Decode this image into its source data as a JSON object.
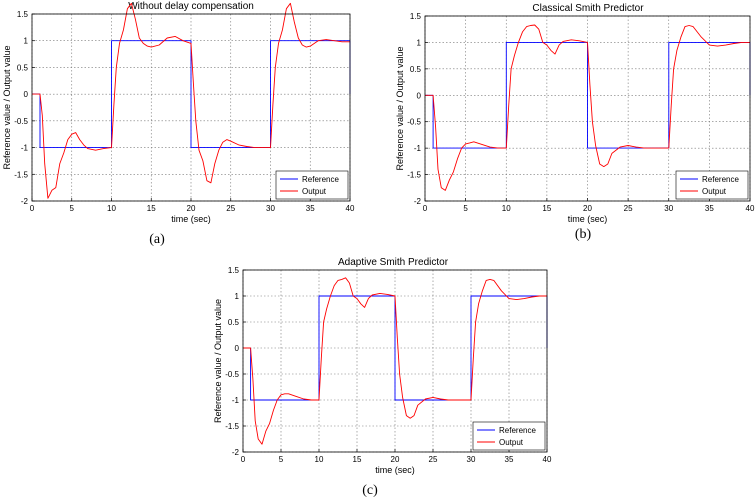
{
  "chart_data": [
    {
      "type": "line",
      "title": "Without delay compensation",
      "caption": "(a)",
      "xlabel": "time (sec)",
      "ylabel": "Reference value / Output value",
      "xlim": [
        0,
        40
      ],
      "ylim": [
        -2,
        1.5
      ],
      "xticks": [
        "0",
        "5",
        "10",
        "15",
        "20",
        "25",
        "30",
        "35",
        "40"
      ],
      "yticks": [
        "-2",
        "-1.5",
        "-1",
        "-0.5",
        "0",
        "0.5",
        "1",
        "1.5"
      ],
      "grid": true,
      "legend_position": "bottom-right",
      "series": [
        {
          "name": "Reference",
          "color": "#0000ff",
          "x": [
            0,
            1,
            1,
            10,
            10,
            20,
            20,
            30,
            30,
            40,
            40
          ],
          "y": [
            0,
            0,
            -1,
            -1,
            1,
            1,
            -1,
            -1,
            1,
            1,
            0
          ]
        },
        {
          "name": "Output",
          "color": "#ff0000",
          "x": [
            0,
            1,
            1.3,
            1.6,
            2,
            2.5,
            3,
            3.5,
            4,
            4.5,
            5,
            5.5,
            6,
            6.5,
            7,
            8,
            9,
            10,
            10.3,
            10.6,
            11,
            11.5,
            12,
            12.5,
            13,
            13.5,
            14,
            14.5,
            15,
            16,
            17,
            18,
            19,
            20,
            20.3,
            20.6,
            21,
            21.5,
            22,
            22.5,
            23,
            23.5,
            24,
            24.5,
            25,
            26,
            27,
            28,
            29,
            30,
            30.3,
            30.6,
            31,
            31.5,
            32,
            32.5,
            33,
            33.5,
            34,
            34.5,
            35,
            36,
            37,
            38,
            39,
            40
          ],
          "y": [
            0,
            0,
            -0.4,
            -1.3,
            -1.95,
            -1.8,
            -1.75,
            -1.3,
            -1.1,
            -0.85,
            -0.75,
            -0.72,
            -0.85,
            -0.95,
            -1.02,
            -1.05,
            -1.02,
            -1.0,
            -0.2,
            0.5,
            0.95,
            1.2,
            1.6,
            1.7,
            1.4,
            1.05,
            0.95,
            0.9,
            0.88,
            0.92,
            1.05,
            1.08,
            1.0,
            0.95,
            0.2,
            -0.5,
            -1.05,
            -1.25,
            -1.62,
            -1.66,
            -1.3,
            -1.05,
            -0.9,
            -0.85,
            -0.88,
            -0.95,
            -0.98,
            -1.0,
            -1.0,
            -1.0,
            -0.2,
            0.5,
            0.95,
            1.2,
            1.6,
            1.7,
            1.35,
            1.05,
            0.92,
            0.88,
            0.9,
            1.0,
            1.02,
            1.0,
            0.98,
            0.98
          ]
        }
      ]
    },
    {
      "type": "line",
      "title": "Classical Smith Predictor",
      "caption": "(b)",
      "xlabel": "time (sec)",
      "ylabel": "Reference value / Output value",
      "xlim": [
        0,
        40
      ],
      "ylim": [
        -2,
        1.5
      ],
      "xticks": [
        "0",
        "5",
        "10",
        "15",
        "20",
        "25",
        "30",
        "35",
        "40"
      ],
      "yticks": [
        "-2",
        "-1.5",
        "-1",
        "-0.5",
        "0",
        "0.5",
        "1",
        "1.5"
      ],
      "grid": true,
      "legend_position": "bottom-right",
      "series": [
        {
          "name": "Reference",
          "color": "#0000ff",
          "x": [
            0,
            1,
            1,
            10,
            10,
            20,
            20,
            30,
            30,
            40,
            40
          ],
          "y": [
            0,
            0,
            -1,
            -1,
            1,
            1,
            -1,
            -1,
            1,
            1,
            0
          ]
        },
        {
          "name": "Output",
          "color": "#ff0000",
          "x": [
            0,
            1,
            1.3,
            1.6,
            2,
            2.5,
            3,
            3.5,
            4,
            4.5,
            5,
            5.5,
            6,
            7,
            8,
            9,
            10,
            10.3,
            10.6,
            11,
            11.5,
            12,
            12.5,
            13,
            13.5,
            14,
            14.5,
            15,
            15.5,
            16,
            16.5,
            17,
            18,
            19,
            20,
            20.3,
            20.6,
            21,
            21.5,
            22,
            22.5,
            23,
            24,
            25,
            26,
            27,
            28,
            29,
            30,
            30.3,
            30.6,
            31,
            31.5,
            32,
            32.5,
            33,
            34,
            35,
            36,
            37,
            38,
            39,
            40
          ],
          "y": [
            0,
            0,
            -0.6,
            -1.4,
            -1.75,
            -1.8,
            -1.6,
            -1.45,
            -1.2,
            -1.0,
            -0.92,
            -0.9,
            -0.88,
            -0.93,
            -0.98,
            -1.0,
            -1.0,
            -0.2,
            0.5,
            0.75,
            1.0,
            1.2,
            1.3,
            1.32,
            1.33,
            1.25,
            1.0,
            0.95,
            0.85,
            0.78,
            0.95,
            1.02,
            1.05,
            1.03,
            1.0,
            0.2,
            -0.5,
            -0.95,
            -1.3,
            -1.35,
            -1.3,
            -1.1,
            -0.98,
            -0.95,
            -0.98,
            -1.0,
            -1.0,
            -1.0,
            -1.0,
            -0.2,
            0.5,
            0.85,
            1.1,
            1.3,
            1.32,
            1.3,
            1.1,
            0.95,
            0.93,
            0.95,
            0.98,
            1.0,
            1.0
          ]
        }
      ]
    },
    {
      "type": "line",
      "title": "Adaptive Smith Predictor",
      "caption": "(c)",
      "xlabel": "time (sec)",
      "ylabel": "Reference value / Output value",
      "xlim": [
        0,
        40
      ],
      "ylim": [
        -2,
        1.5
      ],
      "xticks": [
        "0",
        "5",
        "10",
        "15",
        "20",
        "25",
        "30",
        "35",
        "40"
      ],
      "yticks": [
        "-2",
        "-1.5",
        "-1",
        "-0.5",
        "0",
        "0.5",
        "1",
        "1.5"
      ],
      "grid": true,
      "legend_position": "bottom-right",
      "series": [
        {
          "name": "Reference",
          "color": "#0000ff",
          "x": [
            0,
            1,
            1,
            10,
            10,
            20,
            20,
            30,
            30,
            40,
            40
          ],
          "y": [
            0,
            0,
            -1,
            -1,
            1,
            1,
            -1,
            -1,
            1,
            1,
            0
          ]
        },
        {
          "name": "Output",
          "color": "#ff0000",
          "x": [
            0,
            1,
            1.3,
            1.6,
            2,
            2.5,
            3,
            3.5,
            4,
            4.5,
            5,
            5.5,
            6,
            7,
            8,
            9,
            10,
            10.3,
            10.6,
            11,
            11.5,
            12,
            12.5,
            13,
            13.5,
            14,
            14.5,
            15,
            15.5,
            16,
            16.5,
            17,
            18,
            19,
            20,
            20.3,
            20.6,
            21,
            21.5,
            22,
            22.5,
            23,
            24,
            25,
            26,
            27,
            28,
            29,
            30,
            30.3,
            30.6,
            31,
            31.5,
            32,
            32.5,
            33,
            34,
            35,
            36,
            37,
            38,
            39,
            40
          ],
          "y": [
            0,
            0,
            -0.6,
            -1.4,
            -1.75,
            -1.85,
            -1.6,
            -1.45,
            -1.2,
            -1.0,
            -0.9,
            -0.88,
            -0.88,
            -0.93,
            -0.98,
            -1.0,
            -1.0,
            -0.2,
            0.5,
            0.75,
            1.0,
            1.2,
            1.3,
            1.32,
            1.35,
            1.25,
            1.0,
            0.95,
            0.85,
            0.78,
            0.95,
            1.02,
            1.05,
            1.03,
            1.0,
            0.2,
            -0.5,
            -0.95,
            -1.3,
            -1.35,
            -1.3,
            -1.1,
            -0.98,
            -0.95,
            -0.98,
            -1.0,
            -1.0,
            -1.0,
            -1.0,
            -0.2,
            0.5,
            0.85,
            1.1,
            1.3,
            1.32,
            1.3,
            1.1,
            0.95,
            0.93,
            0.95,
            0.98,
            1.0,
            1.0
          ]
        }
      ]
    }
  ]
}
